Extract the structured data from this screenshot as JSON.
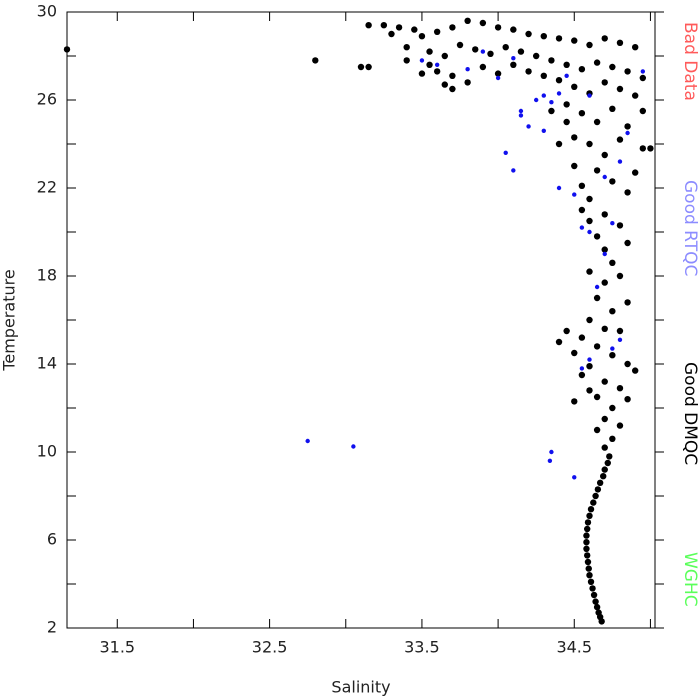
{
  "chart_data": {
    "type": "scatter",
    "xlabel": "Salinity",
    "ylabel": "Temperature",
    "xlim": [
      31.17,
      35.03
    ],
    "ylim": [
      2,
      30
    ],
    "xticks": [
      31.5,
      32.5,
      33.5,
      34.5
    ],
    "xminorticks": [
      32,
      33,
      34,
      35
    ],
    "yticks": [
      2,
      6,
      10,
      14,
      18,
      22,
      26,
      30
    ],
    "yminorticks": [
      4,
      8,
      12,
      16,
      20,
      24,
      28
    ],
    "series": [
      {
        "name": "Bad Data",
        "color": "#ff5a5a",
        "x": [],
        "y": []
      },
      {
        "name": "Good RTQC",
        "color": "#1010ee",
        "legend_color": "#8c8cff",
        "x": [
          32.75,
          33.05,
          34.35,
          34.34,
          34.5,
          34.1,
          34.05,
          34.15,
          34.15,
          34.25,
          34.3,
          34.35,
          34.4,
          34.2,
          34.3,
          34.4,
          34.5,
          34.55,
          34.6,
          34.75,
          34.7,
          34.8,
          34.75,
          34.6,
          34.55,
          34.65,
          34.7,
          34.8,
          33.5,
          33.6,
          33.8,
          33.9,
          34.0,
          34.1,
          34.95,
          34.45,
          34.6,
          34.85
        ],
        "y": [
          10.5,
          10.25,
          10.0,
          9.6,
          8.85,
          22.8,
          23.6,
          25.3,
          25.5,
          26.0,
          26.2,
          25.9,
          26.3,
          24.8,
          24.6,
          22.0,
          21.7,
          20.2,
          20.0,
          20.4,
          19.0,
          15.1,
          14.7,
          14.2,
          13.8,
          17.5,
          22.5,
          23.2,
          27.8,
          27.6,
          27.4,
          28.2,
          27.0,
          27.9,
          27.3,
          27.1,
          26.2,
          24.5
        ]
      },
      {
        "name": "Good DMQC",
        "color": "#000000",
        "x": [
          33.15,
          33.25,
          33.35,
          33.45,
          33.3,
          33.5,
          33.6,
          33.7,
          33.8,
          33.9,
          34.0,
          34.1,
          34.2,
          34.3,
          34.4,
          34.5,
          34.6,
          34.7,
          34.8,
          34.9,
          33.4,
          33.55,
          33.65,
          33.75,
          33.85,
          33.95,
          34.05,
          34.15,
          34.25,
          34.35,
          34.45,
          34.55,
          34.65,
          34.75,
          34.85,
          34.95,
          33.6,
          33.7,
          33.8,
          33.9,
          34.0,
          34.1,
          34.2,
          34.3,
          34.4,
          34.5,
          34.6,
          34.7,
          34.8,
          34.9,
          33.7,
          33.55,
          34.45,
          34.55,
          34.65,
          34.75,
          34.85,
          34.95,
          34.5,
          34.6,
          34.7,
          34.8,
          34.65,
          34.75,
          34.85,
          34.55,
          34.6,
          34.7,
          34.8,
          34.65,
          34.7,
          34.75,
          34.6,
          34.7,
          34.65,
          34.75,
          34.6,
          34.7,
          34.55,
          34.45,
          34.65,
          34.75,
          34.85,
          34.9,
          34.6,
          34.7,
          34.8,
          34.65,
          34.75,
          34.85,
          34.7,
          34.8,
          34.65,
          34.75,
          34.7,
          34.73,
          34.7,
          34.67,
          34.64,
          34.61,
          34.59,
          34.58,
          34.58,
          34.59,
          34.6,
          34.62,
          34.64,
          34.66,
          34.68,
          34.5,
          34.55,
          34.6,
          34.8,
          34.85,
          34.6,
          34.55,
          34.5,
          34.4,
          34.45,
          34.35,
          31.17,
          32.8,
          33.1,
          33.15,
          33.4,
          33.5,
          33.65,
          34.95,
          35.0,
          34.9,
          34.85,
          34.8,
          34.4,
          34.5,
          34.72,
          34.69,
          34.655,
          34.625,
          34.6,
          34.585,
          34.58,
          34.585,
          34.595,
          34.61,
          34.63,
          34.65,
          34.67
        ],
        "y": [
          29.4,
          29.4,
          29.3,
          29.2,
          29.0,
          28.9,
          29.1,
          29.3,
          29.6,
          29.5,
          29.3,
          29.2,
          29.0,
          28.9,
          28.8,
          28.7,
          28.5,
          28.8,
          28.6,
          28.4,
          28.4,
          28.2,
          28.0,
          28.5,
          28.3,
          28.1,
          28.4,
          28.2,
          28.0,
          27.8,
          27.6,
          27.4,
          27.7,
          27.5,
          27.3,
          27.0,
          27.3,
          27.1,
          26.8,
          27.5,
          27.2,
          27.6,
          27.3,
          27.1,
          26.9,
          26.6,
          26.3,
          26.8,
          26.5,
          26.2,
          26.5,
          27.6,
          25.8,
          25.4,
          25.0,
          25.6,
          24.8,
          23.8,
          24.3,
          24.0,
          23.5,
          24.2,
          22.8,
          22.3,
          21.8,
          22.1,
          21.5,
          20.8,
          20.3,
          19.8,
          19.2,
          18.6,
          18.2,
          17.7,
          17.0,
          16.4,
          16.0,
          15.6,
          15.2,
          15.5,
          14.8,
          14.4,
          14.0,
          13.7,
          13.9,
          13.2,
          12.9,
          12.5,
          12.0,
          12.4,
          11.5,
          11.2,
          11.0,
          10.6,
          10.2,
          9.8,
          9.2,
          8.6,
          8.0,
          7.4,
          6.8,
          6.2,
          5.6,
          5.0,
          4.4,
          3.8,
          3.2,
          2.7,
          2.3,
          14.5,
          13.5,
          12.8,
          15.5,
          16.8,
          20.5,
          21.0,
          23.0,
          24.0,
          25.0,
          25.5,
          28.3,
          27.8,
          27.5,
          27.5,
          27.8,
          27.2,
          26.7,
          25.5,
          23.8,
          22.7,
          19.5,
          18.0,
          15.0,
          12.3,
          9.5,
          8.9,
          8.3,
          7.7,
          7.1,
          6.5,
          5.9,
          5.3,
          4.7,
          4.1,
          3.5,
          2.95,
          2.5
        ]
      },
      {
        "name": "WGHC",
        "color": "#5aff5a",
        "x": [],
        "y": []
      }
    ],
    "legend": "right"
  }
}
